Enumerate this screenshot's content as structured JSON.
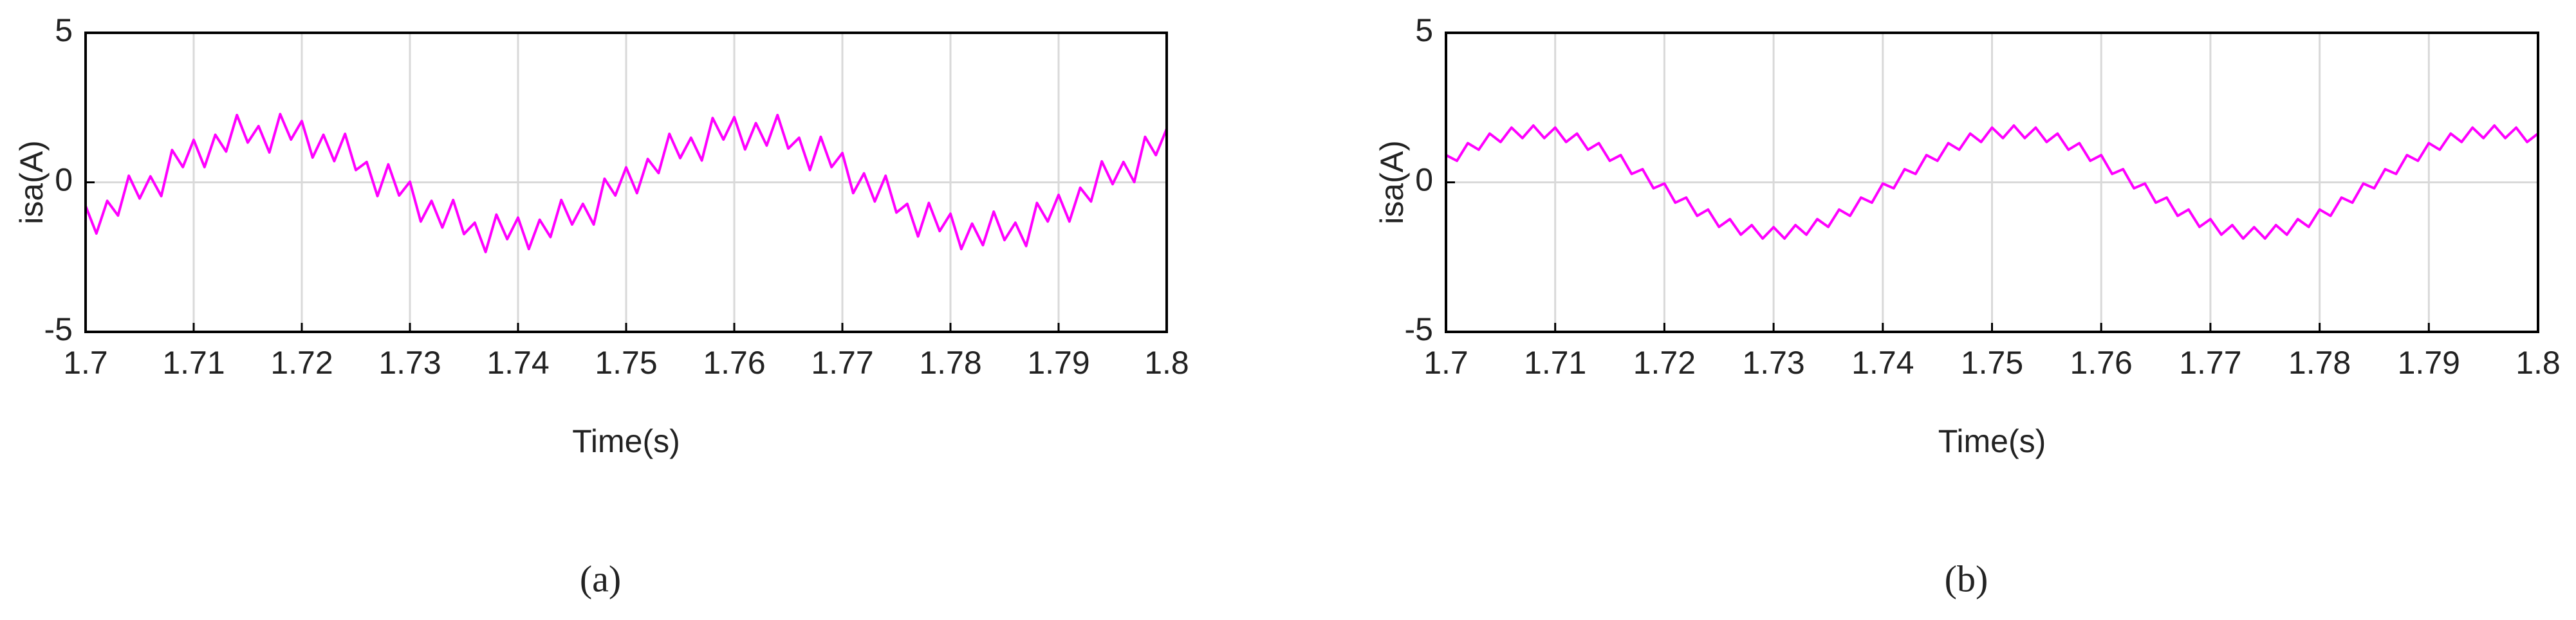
{
  "chart_data": [
    {
      "type": "line",
      "caption": "(a)",
      "xlabel": "Time(s)",
      "ylabel": "isa(A)",
      "xlim": [
        1.7,
        1.8
      ],
      "xticks": [
        1.7,
        1.71,
        1.72,
        1.73,
        1.74,
        1.75,
        1.76,
        1.77,
        1.78,
        1.79,
        1.8
      ],
      "ylim": [
        -5,
        5
      ],
      "yticks": [
        -5,
        0,
        5
      ],
      "grid": true,
      "x": [
        1.7,
        1.701,
        1.702,
        1.703,
        1.704,
        1.705,
        1.706,
        1.707,
        1.708,
        1.709,
        1.71,
        1.711,
        1.712,
        1.713,
        1.714,
        1.715,
        1.716,
        1.717,
        1.718,
        1.719,
        1.72,
        1.721,
        1.722,
        1.723,
        1.724,
        1.725,
        1.726,
        1.727,
        1.728,
        1.729,
        1.73,
        1.731,
        1.732,
        1.733,
        1.734,
        1.735,
        1.736,
        1.737,
        1.738,
        1.739,
        1.74,
        1.741,
        1.742,
        1.743,
        1.744,
        1.745,
        1.746,
        1.747,
        1.748,
        1.749,
        1.75,
        1.751,
        1.752,
        1.753,
        1.754,
        1.755,
        1.756,
        1.757,
        1.758,
        1.759,
        1.76,
        1.761,
        1.762,
        1.763,
        1.764,
        1.765,
        1.766,
        1.767,
        1.768,
        1.769,
        1.77,
        1.771,
        1.772,
        1.773,
        1.774,
        1.775,
        1.776,
        1.777,
        1.778,
        1.779,
        1.78,
        1.781,
        1.782,
        1.783,
        1.784,
        1.785,
        1.786,
        1.787,
        1.788,
        1.789,
        1.79,
        1.791,
        1.792,
        1.793,
        1.794,
        1.795,
        1.796,
        1.797,
        1.798,
        1.799,
        1.8
      ],
      "series": [
        {
          "color": "#ff00ff",
          "values": [
            -0.79,
            -1.71,
            -0.62,
            -1.11,
            0.22,
            -0.54,
            0.2,
            -0.46,
            1.08,
            0.51,
            1.42,
            0.51,
            1.59,
            1.03,
            2.25,
            1.33,
            1.88,
            1.0,
            2.28,
            1.43,
            2.05,
            0.83,
            1.59,
            0.71,
            1.62,
            0.41,
            0.68,
            -0.46,
            0.6,
            -0.44,
            0.02,
            -1.31,
            -0.62,
            -1.51,
            -0.59,
            -1.73,
            -1.35,
            -2.33,
            -1.08,
            -1.9,
            -1.18,
            -2.23,
            -1.25,
            -1.83,
            -0.59,
            -1.41,
            -0.72,
            -1.41,
            0.12,
            -0.44,
            0.5,
            -0.36,
            0.78,
            0.31,
            1.62,
            0.81,
            1.49,
            0.73,
            2.15,
            1.43,
            2.18,
            1.1,
            1.98,
            1.23,
            2.25,
            1.13,
            1.49,
            0.41,
            1.52,
            0.51,
            0.98,
            -0.36,
            0.3,
            -0.64,
            0.22,
            -1.01,
            -0.72,
            -1.81,
            -0.69,
            -1.63,
            -1.05,
            -2.23,
            -1.38,
            -2.1,
            -0.98,
            -1.93,
            -1.35,
            -2.13,
            -0.69,
            -1.31,
            -0.42,
            -1.31,
            -0.18,
            -0.64,
            0.7,
            -0.06,
            0.68,
            0.01,
            1.52,
            0.91,
            1.79
          ]
        }
      ]
    },
    {
      "type": "line",
      "caption": "(b)",
      "xlabel": "Time(s)",
      "ylabel": "isa(A)",
      "xlim": [
        1.7,
        1.8
      ],
      "xticks": [
        1.7,
        1.71,
        1.72,
        1.73,
        1.74,
        1.75,
        1.76,
        1.77,
        1.78,
        1.79,
        1.8
      ],
      "ylim": [
        -5,
        5
      ],
      "yticks": [
        -5,
        0,
        5
      ],
      "grid": true,
      "x": [
        1.7,
        1.701,
        1.702,
        1.703,
        1.704,
        1.705,
        1.706,
        1.707,
        1.708,
        1.709,
        1.71,
        1.711,
        1.712,
        1.713,
        1.714,
        1.715,
        1.716,
        1.717,
        1.718,
        1.719,
        1.72,
        1.721,
        1.722,
        1.723,
        1.724,
        1.725,
        1.726,
        1.727,
        1.728,
        1.729,
        1.73,
        1.731,
        1.732,
        1.733,
        1.734,
        1.735,
        1.736,
        1.737,
        1.738,
        1.739,
        1.74,
        1.741,
        1.742,
        1.743,
        1.744,
        1.745,
        1.746,
        1.747,
        1.748,
        1.749,
        1.75,
        1.751,
        1.752,
        1.753,
        1.754,
        1.755,
        1.756,
        1.757,
        1.758,
        1.759,
        1.76,
        1.761,
        1.762,
        1.763,
        1.764,
        1.765,
        1.766,
        1.767,
        1.768,
        1.769,
        1.77,
        1.771,
        1.772,
        1.773,
        1.774,
        1.775,
        1.776,
        1.777,
        1.778,
        1.779,
        1.78,
        1.781,
        1.782,
        1.783,
        1.784,
        1.785,
        1.786,
        1.787,
        1.788,
        1.789,
        1.79,
        1.791,
        1.792,
        1.793,
        1.794,
        1.795,
        1.796,
        1.797,
        1.798,
        1.799,
        1.8
      ],
      "series": [
        {
          "color": "#ff00ff",
          "values": [
            0.91,
            0.72,
            1.31,
            1.09,
            1.63,
            1.35,
            1.83,
            1.48,
            1.9,
            1.48,
            1.83,
            1.35,
            1.63,
            1.09,
            1.31,
            0.72,
            0.91,
            0.28,
            0.44,
            -0.2,
            -0.04,
            -0.68,
            -0.51,
            -1.12,
            -0.91,
            -1.49,
            -1.23,
            -1.75,
            -1.43,
            -1.88,
            -1.5,
            -1.88,
            -1.43,
            -1.75,
            -1.23,
            -1.49,
            -0.91,
            -1.12,
            -0.51,
            -0.68,
            -0.04,
            -0.2,
            0.44,
            0.28,
            0.91,
            0.72,
            1.31,
            1.09,
            1.63,
            1.35,
            1.83,
            1.48,
            1.9,
            1.48,
            1.83,
            1.35,
            1.63,
            1.09,
            1.31,
            0.72,
            0.91,
            0.28,
            0.44,
            -0.2,
            -0.04,
            -0.68,
            -0.51,
            -1.12,
            -0.91,
            -1.49,
            -1.23,
            -1.75,
            -1.43,
            -1.88,
            -1.5,
            -1.88,
            -1.43,
            -1.75,
            -1.23,
            -1.49,
            -0.91,
            -1.12,
            -0.51,
            -0.68,
            -0.04,
            -0.2,
            0.44,
            0.28,
            0.91,
            0.72,
            1.31,
            1.09,
            1.63,
            1.35,
            1.83,
            1.48,
            1.9,
            1.48,
            1.83,
            1.35,
            1.63
          ]
        }
      ]
    }
  ]
}
